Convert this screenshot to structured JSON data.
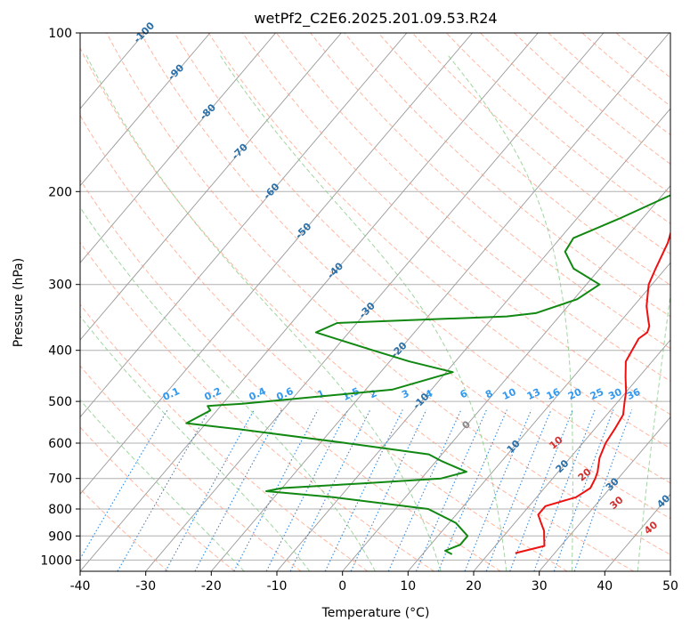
{
  "chart_data": {
    "type": "line",
    "title": "wetPf2_C2E6.2025.201.09.53.R24",
    "xlabel": "Temperature (°C)",
    "ylabel": "Pressure (hPa)",
    "xlim": [
      -40,
      50
    ],
    "ylim": [
      1050,
      100
    ],
    "y_scale": "log",
    "grid": true,
    "x_ticks": [
      -40,
      -30,
      -20,
      -10,
      0,
      10,
      20,
      30,
      40,
      50
    ],
    "y_ticks": [
      100,
      200,
      300,
      400,
      500,
      600,
      700,
      800,
      900,
      1000
    ],
    "colors": {
      "temperature": "#ee1111",
      "dewpoint": "#118811",
      "isotherm": "#999999",
      "dry_adiabat": "#ff9977",
      "moist_adiabat": "#88cc88",
      "mixing_ratio": "#3388dd",
      "isotherm_label": "#2a6fa8",
      "mixing_label": "#3399ee",
      "adiabat_label": "#d03030"
    },
    "series": [
      {
        "key": "temperature",
        "p": [
          100,
          110,
          125,
          150,
          175,
          200,
          220,
          250,
          280,
          300,
          330,
          350,
          360,
          370,
          380,
          400,
          420,
          450,
          480,
          500,
          530,
          560,
          600,
          640,
          680,
          700,
          730,
          760,
          790,
          820,
          850,
          880,
          910,
          940,
          970
        ],
        "t": [
          7,
          4,
          1.5,
          2.5,
          3,
          2.5,
          4.5,
          7,
          8.5,
          9.5,
          12,
          14,
          15,
          15.5,
          15,
          15.5,
          16,
          18,
          20,
          21,
          22.5,
          23,
          23.5,
          24.5,
          26,
          26.5,
          27,
          26,
          22.5,
          22.5,
          24,
          25.5,
          26.5,
          27.5,
          24
        ]
      },
      {
        "key": "dewpoint",
        "p": [
          100,
          110,
          125,
          140,
          165,
          180,
          190,
          200,
          225,
          245,
          260,
          280,
          300,
          320,
          340,
          345,
          355,
          370,
          400,
          420,
          440,
          475,
          505,
          510,
          520,
          550,
          565,
          600,
          630,
          650,
          680,
          700,
          715,
          730,
          740,
          760,
          800,
          850,
          900,
          935,
          960,
          975
        ],
        "t": [
          1,
          -1.5,
          -3.5,
          -6,
          -4.5,
          0,
          3,
          2,
          -3.5,
          -8,
          -7.5,
          -4,
          2,
          0.5,
          -4,
          -8,
          -33,
          -35,
          -24,
          -17,
          -9,
          -16,
          -37,
          -42,
          -41,
          -43,
          -34,
          -16,
          -2,
          1,
          6,
          3,
          -8,
          -20,
          -22,
          -11,
          5,
          11,
          14.5,
          14.5,
          13,
          14.5
        ]
      }
    ],
    "isotherm_labels": [
      -100,
      -90,
      -80,
      -70,
      -60,
      -50,
      -40,
      -30,
      -20,
      -10,
      0,
      10,
      20,
      30,
      40
    ],
    "dry_adiabat_labels": [
      10,
      20,
      30,
      40
    ],
    "mixing_ratio_labels": [
      0.1,
      0.2,
      0.4,
      0.6,
      1,
      1.5,
      2,
      3,
      4,
      6,
      8,
      10,
      13,
      16,
      20,
      25,
      30,
      36
    ]
  }
}
